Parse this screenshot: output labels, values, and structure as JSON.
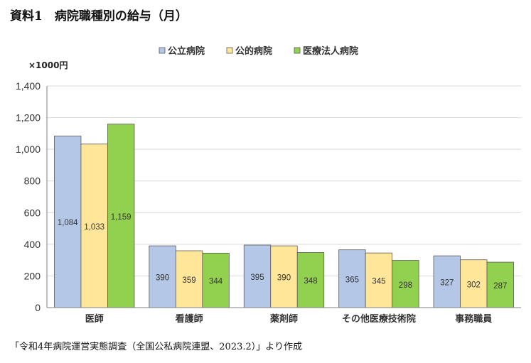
{
  "title": "資料1　病院職種別の給与（月）",
  "source": "「令和4年病院運営実態調査（全国公私病院連盟、2023.2）」より作成",
  "chart_data": {
    "type": "bar",
    "unit": "×1000円",
    "categories": [
      "医師",
      "看護師",
      "薬剤師",
      "その他医療技術院",
      "事務職員"
    ],
    "series": [
      {
        "name": "公立病院",
        "color": "#b4c7e7",
        "values": [
          1084,
          390,
          395,
          365,
          327
        ],
        "labels": [
          "1,084",
          "390",
          "395",
          "365",
          "327"
        ]
      },
      {
        "name": "公的病院",
        "color": "#ffe699",
        "values": [
          1033,
          359,
          390,
          345,
          302
        ],
        "labels": [
          "1,033",
          "359",
          "390",
          "345",
          "302"
        ]
      },
      {
        "name": "医療法人病院",
        "color": "#92d050",
        "values": [
          1159,
          344,
          348,
          298,
          287
        ],
        "labels": [
          "1,159",
          "344",
          "348",
          "298",
          "287"
        ]
      }
    ],
    "ylim": [
      0,
      1400
    ],
    "yticks": [
      "0",
      "200",
      "400",
      "600",
      "800",
      "1,000",
      "1,200",
      "1,400"
    ],
    "grid": true,
    "legend_position": "top-center"
  }
}
